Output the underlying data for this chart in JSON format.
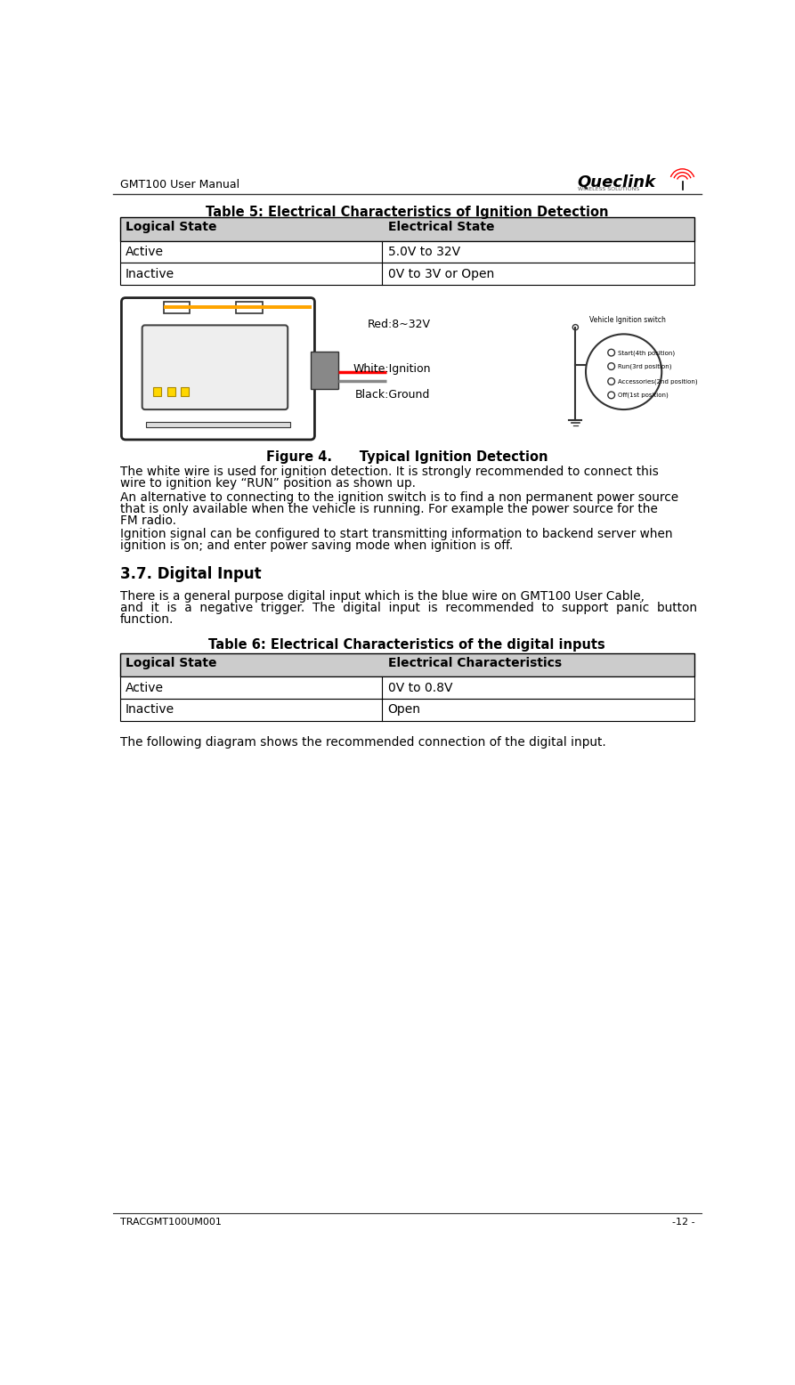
{
  "page_title_left": "GMT100 User Manual",
  "page_footer_left": "TRACGMT100UM001",
  "page_footer_right": "-12 -",
  "table5_title": "Table 5: Electrical Characteristics of Ignition Detection",
  "table5_headers": [
    "Logical State",
    "Electrical State"
  ],
  "table5_rows": [
    [
      "Active",
      "5.0V to 32V"
    ],
    [
      "Inactive",
      "0V to 3V or Open"
    ]
  ],
  "figure4_caption": "Figure 4.      Typical Ignition Detection",
  "para1_line1": "The white wire is used for ignition detection. It is strongly recommended to connect this",
  "para1_line2": "wire to ignition key “RUN” position as shown up.",
  "para2_line1": "An alternative to connecting to the ignition switch is to find a non permanent power source",
  "para2_line2": "that is only available when the vehicle is running. For example the power source for the",
  "para2_line3": "FM radio.",
  "para3_line1": "Ignition signal can be configured to start transmitting information to backend server when",
  "para3_line2": "ignition is on; and enter power saving mode when ignition is off.",
  "section_title": "3.7. Digital Input",
  "para4_line1": "There is a general purpose digital input which is the blue wire on GMT100 User Cable,",
  "para4_line2": "and  it  is  a  negative  trigger.  The  digital  input  is  recommended  to  support  panic  button",
  "para4_line3": "function.",
  "table6_title": "Table 6: Electrical Characteristics of the digital inputs",
  "table6_headers": [
    "Logical State",
    "Electrical Characteristics"
  ],
  "table6_rows": [
    [
      "Active",
      "0V to 0.8V"
    ],
    [
      "Inactive",
      "Open"
    ]
  ],
  "para5": "The following diagram shows the recommended connection of the digital input.",
  "bg_color": "#ffffff",
  "table_border": "#000000",
  "text_color": "#000000",
  "wire_label_red": "Red:8~32V",
  "wire_label_white": "White:Ignition",
  "wire_label_black": "Black:Ground",
  "sw_label": "Vehicle Ignition switch",
  "sw_positions": [
    "Start(4th position)",
    "Run(3rd position)",
    "Accessories(2nd position)",
    "Off(1st position)"
  ]
}
